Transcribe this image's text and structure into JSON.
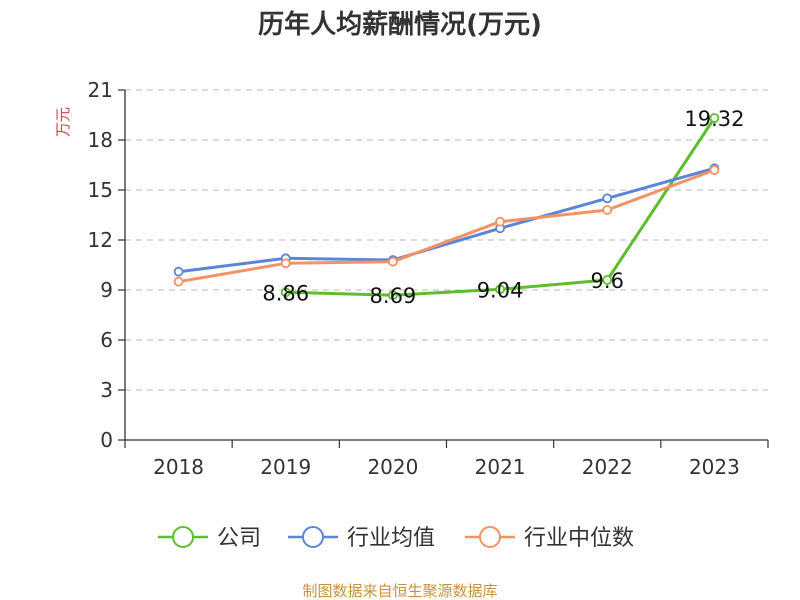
{
  "chart_data": {
    "type": "line",
    "title": "历年人均薪酬情况(万元)",
    "ylabel": "万元",
    "xlabel": "",
    "categories": [
      "2018",
      "2019",
      "2020",
      "2021",
      "2022",
      "2023"
    ],
    "ylim": [
      0,
      21
    ],
    "yticks": [
      0,
      3,
      6,
      9,
      12,
      15,
      18,
      21
    ],
    "grid": true,
    "legend_position": "bottom",
    "series": [
      {
        "name": "公司",
        "color": "#5cbf2a",
        "values": [
          null,
          8.86,
          8.69,
          9.04,
          9.6,
          19.32
        ],
        "labels": [
          "",
          "8.86",
          "8.69",
          "9.04",
          "9.6",
          "19.32"
        ]
      },
      {
        "name": "行业均值",
        "color": "#5b85d6",
        "values": [
          10.1,
          10.9,
          10.8,
          12.7,
          14.5,
          16.3
        ],
        "labels": []
      },
      {
        "name": "行业中位数",
        "color": "#f59264",
        "values": [
          9.5,
          10.6,
          10.7,
          13.1,
          13.8,
          16.2
        ],
        "labels": []
      }
    ]
  },
  "source": "制图数据来自恒生聚源数据库"
}
